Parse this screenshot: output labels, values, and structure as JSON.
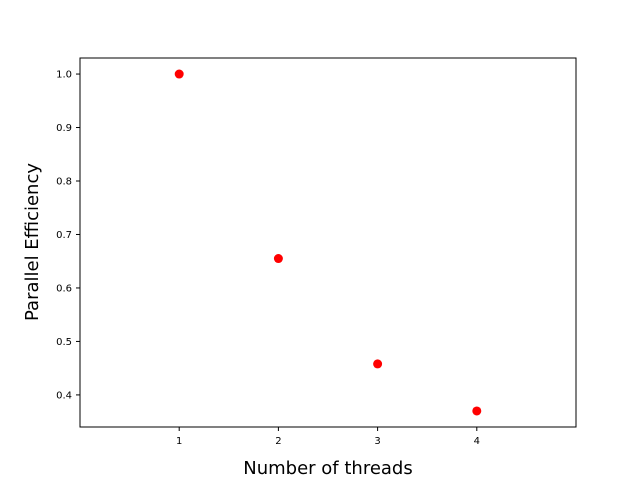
{
  "chart_data": {
    "type": "scatter",
    "xlabel": "Number of threads",
    "ylabel": "Parallel Efficiency",
    "x": [
      1,
      2,
      3,
      4
    ],
    "y": [
      1.0,
      0.655,
      0.458,
      0.37
    ],
    "xlim": [
      0,
      5
    ],
    "ylim": [
      0.34,
      1.03
    ],
    "xticks": [
      1,
      2,
      3,
      4
    ],
    "xtick_labels": [
      "1",
      "2",
      "3",
      "4"
    ],
    "yticks": [
      0.4,
      0.5,
      0.6,
      0.7,
      0.8,
      0.9,
      1.0
    ],
    "ytick_labels": [
      "0.4",
      "0.5",
      "0.6",
      "0.7",
      "0.8",
      "0.9",
      "1.0"
    ],
    "marker_color": "#ff0000",
    "grid": false,
    "legend": "none"
  }
}
